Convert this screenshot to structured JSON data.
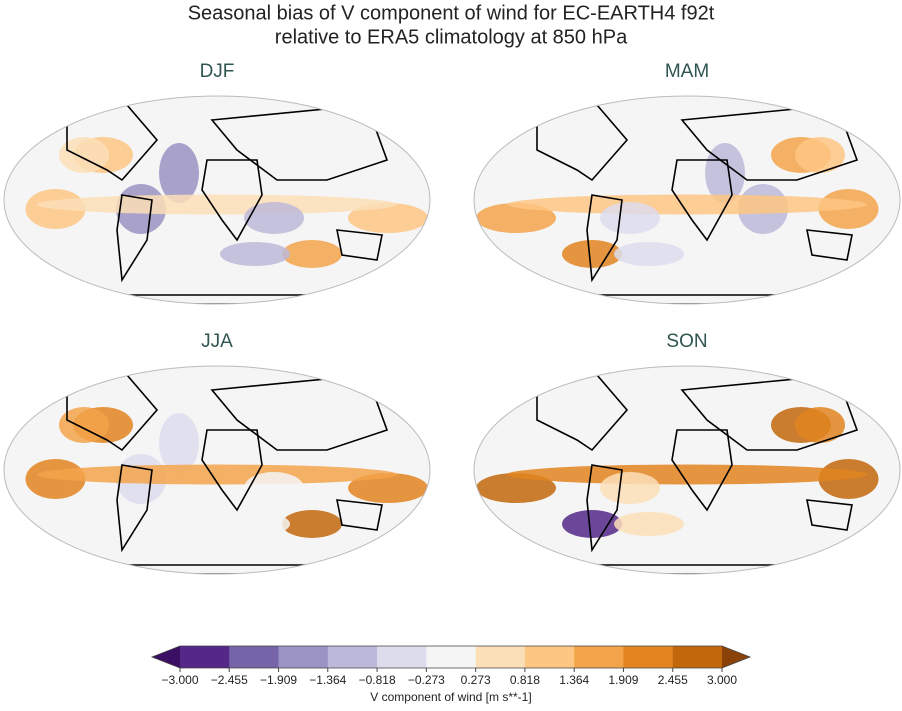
{
  "title": [
    "Seasonal bias of V component of wind for EC-EARTH4 f92t",
    "relative to ERA5 climatology at 850 hPa"
  ],
  "panels": [
    "DJF",
    "MAM",
    "JJA",
    "SON"
  ],
  "colorbar": {
    "label": "V component of wind [m s**-1]",
    "ticks": [
      {
        "value": -3.0,
        "label": "−3.000"
      },
      {
        "value": -2.455,
        "label": "−2.455"
      },
      {
        "value": -1.909,
        "label": "−1.909"
      },
      {
        "value": -1.364,
        "label": "−1.364"
      },
      {
        "value": -0.818,
        "label": "−0.818"
      },
      {
        "value": -0.273,
        "label": "−0.273"
      },
      {
        "value": 0.273,
        "label": "0.273"
      },
      {
        "value": 0.818,
        "label": "0.818"
      },
      {
        "value": 1.364,
        "label": "1.364"
      },
      {
        "value": 1.909,
        "label": "1.909"
      },
      {
        "value": 2.455,
        "label": "2.455"
      },
      {
        "value": 3.0,
        "label": "3.000"
      }
    ],
    "colors": [
      "#542788",
      "#7565a8",
      "#9a93c3",
      "#bcb8d9",
      "#dddcec",
      "#f5f5f5",
      "#fbdfb8",
      "#fdc682",
      "#f3a44b",
      "#e2841f",
      "#c2670c"
    ],
    "extend_colors": [
      "#3b0f63",
      "#8a4208"
    ]
  }
}
